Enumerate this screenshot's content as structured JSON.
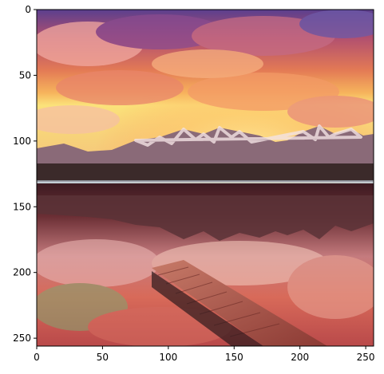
{
  "figure": {
    "image_description_icon": "landscape-photo-icon",
    "colors": {
      "sky_top": "#4a3d8f",
      "sky_mid": "#e8875a",
      "sky_glow": "#f7d46a",
      "mountains": "#8a6e7a",
      "snow": "#f1e3e6",
      "water_reflection": "#c45a5a",
      "dock": "#b55b4e",
      "axis": "#000000"
    }
  },
  "chart_data": {
    "type": "image",
    "xlabel": "",
    "ylabel": "",
    "xlim": [
      0,
      256
    ],
    "ylim": [
      256,
      0
    ],
    "x_ticks": [
      0,
      50,
      100,
      150,
      200,
      250
    ],
    "y_ticks": [
      0,
      50,
      100,
      150,
      200,
      250
    ],
    "x_tick_labels": [
      "0",
      "50",
      "100",
      "150",
      "200",
      "250"
    ],
    "y_tick_labels": [
      "0",
      "50",
      "100",
      "150",
      "200",
      "250"
    ]
  }
}
